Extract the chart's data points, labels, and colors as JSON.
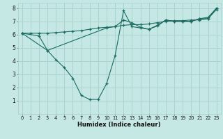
{
  "xlabel": "Humidex (Indice chaleur)",
  "background_color": "#c5e8e5",
  "grid_color": "#aad4d0",
  "line_color": "#1a6b60",
  "xlim": [
    -0.5,
    23.5
  ],
  "ylim": [
    0,
    8.4
  ],
  "xticks": [
    0,
    1,
    2,
    3,
    4,
    5,
    6,
    7,
    8,
    9,
    10,
    11,
    12,
    13,
    14,
    15,
    16,
    17,
    18,
    19,
    20,
    21,
    22,
    23
  ],
  "yticks": [
    1,
    2,
    3,
    4,
    5,
    6,
    7,
    8
  ],
  "curve1_x": [
    0,
    2,
    3,
    10,
    11,
    12,
    13,
    14,
    15,
    16,
    17,
    18,
    19,
    20,
    21,
    22,
    23
  ],
  "curve1_y": [
    6.1,
    5.9,
    4.8,
    6.5,
    6.6,
    7.1,
    6.9,
    6.55,
    6.4,
    6.7,
    7.1,
    7.0,
    7.0,
    7.0,
    7.2,
    7.3,
    8.0
  ],
  "curve2_x": [
    0,
    3,
    4,
    5,
    6,
    7,
    8,
    9,
    10,
    11,
    12,
    13,
    14,
    15,
    16,
    17,
    18,
    19,
    20,
    21,
    22,
    23
  ],
  "curve2_y": [
    6.1,
    4.8,
    4.1,
    3.5,
    2.7,
    1.4,
    1.1,
    1.1,
    2.3,
    4.4,
    7.8,
    6.6,
    6.5,
    6.4,
    6.65,
    7.1,
    7.0,
    7.0,
    7.0,
    7.2,
    7.2,
    8.0
  ],
  "curve3_x": [
    0,
    1,
    2,
    3,
    4,
    5,
    6,
    7,
    8,
    9,
    10,
    11,
    12,
    13,
    14,
    15,
    16,
    17,
    18,
    19,
    20,
    21,
    22,
    23
  ],
  "curve3_y": [
    6.1,
    6.1,
    6.1,
    6.1,
    6.15,
    6.2,
    6.25,
    6.3,
    6.4,
    6.5,
    6.55,
    6.6,
    6.7,
    6.75,
    6.75,
    6.8,
    6.9,
    7.0,
    7.05,
    7.05,
    7.1,
    7.1,
    7.2,
    7.9
  ]
}
